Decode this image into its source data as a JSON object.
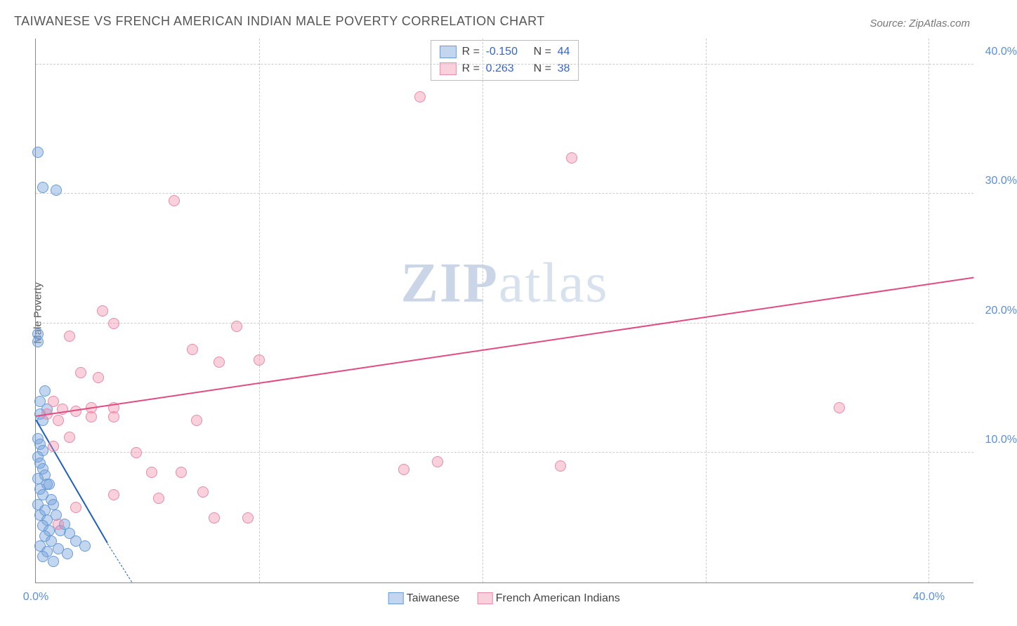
{
  "title": "TAIWANESE VS FRENCH AMERICAN INDIAN MALE POVERTY CORRELATION CHART",
  "source": "Source: ZipAtlas.com",
  "ylabel": "Male Poverty",
  "watermark_prefix": "ZIP",
  "watermark_suffix": "atlas",
  "chart": {
    "type": "scatter",
    "xlim": [
      0,
      42
    ],
    "ylim": [
      0,
      42
    ],
    "x_ticks": [
      0,
      10,
      20,
      30,
      40
    ],
    "y_ticks": [
      10,
      20,
      30,
      40
    ],
    "x_tick_labels": [
      "0.0%",
      "",
      "",
      "",
      "40.0%"
    ],
    "y_tick_labels": [
      "10.0%",
      "20.0%",
      "30.0%",
      "40.0%"
    ],
    "grid_color": "#cccccc",
    "background_color": "#ffffff",
    "point_radius": 8,
    "series": [
      {
        "name": "Taiwanese",
        "fill": "rgba(120,165,220,0.45)",
        "stroke": "#6a9bd8",
        "trend_color": "#1f5fbf",
        "r_value": "-0.150",
        "n_value": "44",
        "trend": {
          "x1": 0,
          "y1": 12.5,
          "x2": 3.2,
          "y2": 3.0
        },
        "trend_extrap": {
          "x1": 3.2,
          "y1": 3.0,
          "x2": 4.3,
          "y2": 0
        },
        "points": [
          [
            0.1,
            33.2
          ],
          [
            0.3,
            30.5
          ],
          [
            0.9,
            30.3
          ],
          [
            0.1,
            18.6
          ],
          [
            0.1,
            19.2
          ],
          [
            0.4,
            14.8
          ],
          [
            0.2,
            14.0
          ],
          [
            0.5,
            13.4
          ],
          [
            0.2,
            13.0
          ],
          [
            0.3,
            12.5
          ],
          [
            0.1,
            11.1
          ],
          [
            0.2,
            10.7
          ],
          [
            0.3,
            10.2
          ],
          [
            0.1,
            9.7
          ],
          [
            0.2,
            9.2
          ],
          [
            0.3,
            8.8
          ],
          [
            0.4,
            8.3
          ],
          [
            0.1,
            8.0
          ],
          [
            0.5,
            7.6
          ],
          [
            0.2,
            7.2
          ],
          [
            0.6,
            7.6
          ],
          [
            0.3,
            6.8
          ],
          [
            0.7,
            6.4
          ],
          [
            0.1,
            6.0
          ],
          [
            0.4,
            5.6
          ],
          [
            0.8,
            6.0
          ],
          [
            0.2,
            5.2
          ],
          [
            0.5,
            4.8
          ],
          [
            0.9,
            5.2
          ],
          [
            0.3,
            4.4
          ],
          [
            1.1,
            4.0
          ],
          [
            0.6,
            4.0
          ],
          [
            1.3,
            4.5
          ],
          [
            0.4,
            3.6
          ],
          [
            1.5,
            3.8
          ],
          [
            0.7,
            3.2
          ],
          [
            0.2,
            2.8
          ],
          [
            1.8,
            3.2
          ],
          [
            0.5,
            2.4
          ],
          [
            1.0,
            2.6
          ],
          [
            2.2,
            2.8
          ],
          [
            0.3,
            2.0
          ],
          [
            1.4,
            2.2
          ],
          [
            0.8,
            1.6
          ]
        ]
      },
      {
        "name": "French American Indians",
        "fill": "rgba(240,140,170,0.4)",
        "stroke": "#e88aa8",
        "trend_color": "#e14b82",
        "r_value": "0.263",
        "n_value": "38",
        "trend": {
          "x1": 0,
          "y1": 12.8,
          "x2": 42,
          "y2": 23.5
        },
        "points": [
          [
            17.2,
            37.5
          ],
          [
            24.0,
            32.8
          ],
          [
            6.2,
            29.5
          ],
          [
            3.0,
            21.0
          ],
          [
            3.5,
            20.0
          ],
          [
            1.5,
            19.0
          ],
          [
            9.0,
            19.8
          ],
          [
            2.0,
            16.2
          ],
          [
            2.8,
            15.8
          ],
          [
            7.0,
            18.0
          ],
          [
            8.2,
            17.0
          ],
          [
            10.0,
            17.2
          ],
          [
            0.8,
            14.0
          ],
          [
            1.2,
            13.4
          ],
          [
            1.8,
            13.2
          ],
          [
            0.5,
            13.0
          ],
          [
            2.5,
            13.5
          ],
          [
            3.5,
            13.5
          ],
          [
            1.0,
            12.5
          ],
          [
            36.0,
            13.5
          ],
          [
            2.5,
            12.8
          ],
          [
            3.5,
            12.8
          ],
          [
            7.2,
            12.5
          ],
          [
            1.5,
            11.2
          ],
          [
            0.8,
            10.5
          ],
          [
            4.5,
            10.0
          ],
          [
            16.5,
            8.7
          ],
          [
            18.0,
            9.3
          ],
          [
            23.5,
            9.0
          ],
          [
            5.2,
            8.5
          ],
          [
            6.5,
            8.5
          ],
          [
            3.5,
            6.8
          ],
          [
            5.5,
            6.5
          ],
          [
            7.5,
            7.0
          ],
          [
            9.5,
            5.0
          ],
          [
            1.8,
            5.8
          ],
          [
            8.0,
            5.0
          ],
          [
            1.0,
            4.5
          ]
        ]
      }
    ]
  },
  "legend_top": {
    "r_label": "R =",
    "n_label": "N ="
  }
}
